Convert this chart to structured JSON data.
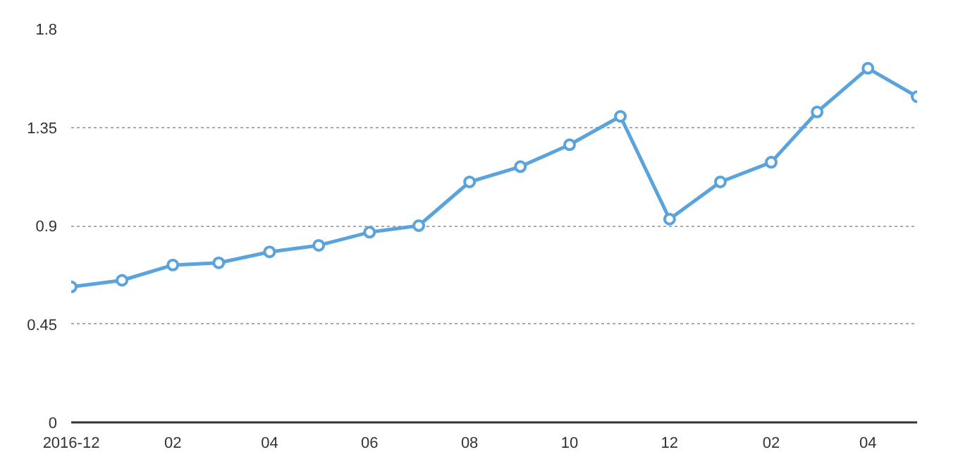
{
  "chart_data": {
    "type": "line",
    "x": [
      "2016-12",
      "2017-01",
      "2017-02",
      "2017-03",
      "2017-04",
      "2017-05",
      "2017-06",
      "2017-07",
      "2017-08",
      "2017-09",
      "2017-10",
      "2017-11",
      "2017-12",
      "2018-01",
      "2018-02",
      "2018-03",
      "2018-04",
      "2018-05"
    ],
    "series": [
      {
        "color": "#5aa3dc",
        "values": [
          0.62,
          0.65,
          0.72,
          0.73,
          0.78,
          0.81,
          0.87,
          0.9,
          1.1,
          1.17,
          1.27,
          1.4,
          0.93,
          1.1,
          1.19,
          1.42,
          1.62,
          1.49
        ]
      }
    ],
    "xlim": [
      "2016-12",
      "2018-05"
    ],
    "xticks": [
      {
        "value": "2016-12",
        "label": "2016-12"
      },
      {
        "value": "2017-02",
        "label": "02"
      },
      {
        "value": "2017-04",
        "label": "04"
      },
      {
        "value": "2017-06",
        "label": "06"
      },
      {
        "value": "2017-08",
        "label": "08"
      },
      {
        "value": "2017-10",
        "label": "10"
      },
      {
        "value": "2017-12",
        "label": "12"
      },
      {
        "value": "2018-02",
        "label": "02"
      },
      {
        "value": "2018-04",
        "label": "04"
      }
    ],
    "ylim": [
      0,
      1.8
    ],
    "yticks": [
      0,
      0.45,
      0.9,
      1.35,
      1.8
    ],
    "grid": "y",
    "marker": "circle",
    "line_style": "solid"
  }
}
